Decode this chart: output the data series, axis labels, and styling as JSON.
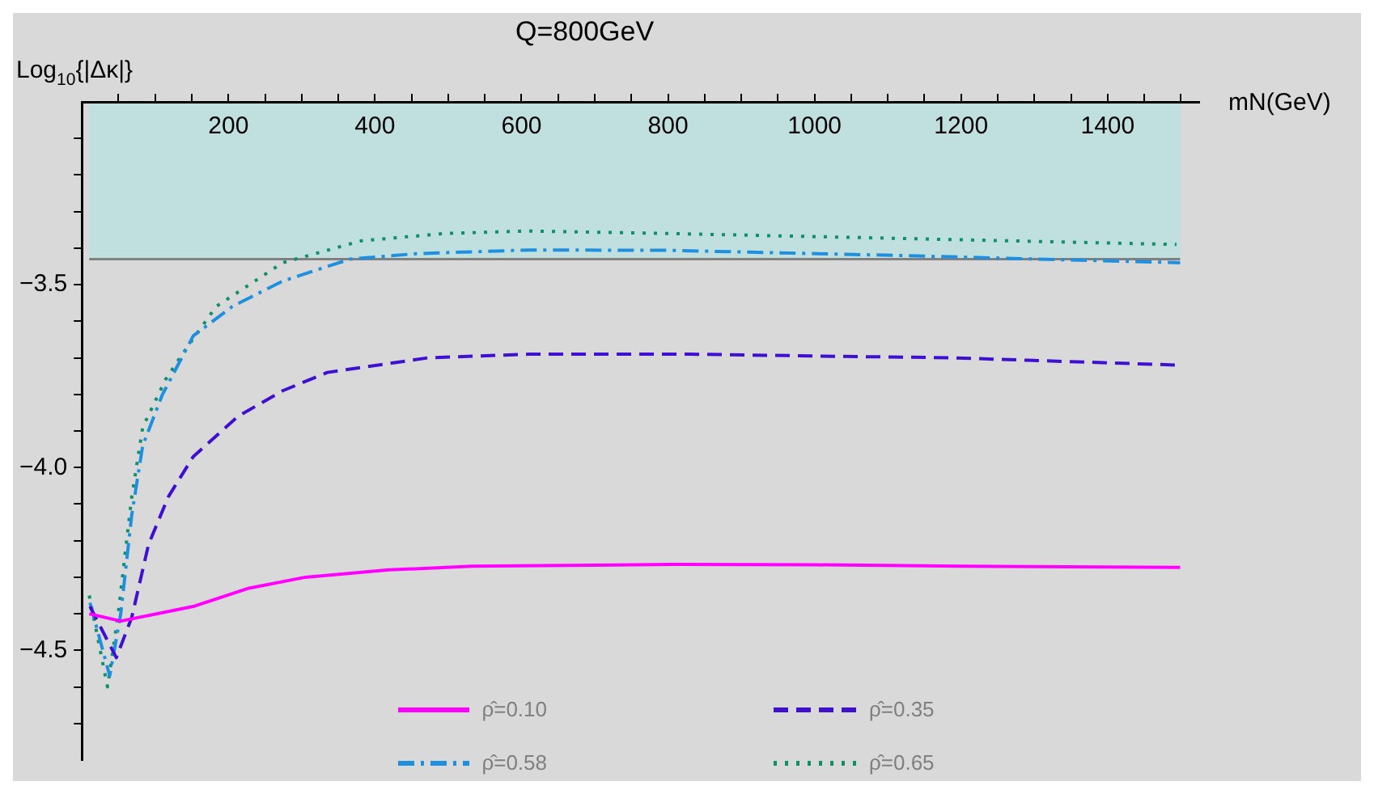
{
  "chart_data": {
    "type": "line",
    "title": "Q=800GeV",
    "xlabel": "mN(GeV)",
    "ylabel": "Log$_{10}${|Δκ|}",
    "xlim": [
      0,
      1525
    ],
    "ylim": [
      -4.8,
      -3.0
    ],
    "xticks": [
      {
        "value": 50,
        "label": null
      },
      {
        "value": 100,
        "label": null
      },
      {
        "value": 150,
        "label": null
      },
      200,
      {
        "value": 250,
        "label": null
      },
      {
        "value": 300,
        "label": null
      },
      {
        "value": 350,
        "label": null
      },
      400,
      {
        "value": 450,
        "label": null
      },
      {
        "value": 500,
        "label": null
      },
      {
        "value": 550,
        "label": null
      },
      600,
      {
        "value": 650,
        "label": null
      },
      {
        "value": 700,
        "label": null
      },
      {
        "value": 750,
        "label": null
      },
      800,
      {
        "value": 850,
        "label": null
      },
      {
        "value": 900,
        "label": null
      },
      {
        "value": 950,
        "label": null
      },
      1000,
      {
        "value": 1050,
        "label": null
      },
      {
        "value": 1100,
        "label": null
      },
      {
        "value": 1150,
        "label": null
      },
      1200,
      {
        "value": 1250,
        "label": null
      },
      {
        "value": 1300,
        "label": null
      },
      {
        "value": 1350,
        "label": null
      },
      1400,
      {
        "value": 1450,
        "label": null
      },
      {
        "value": 1500,
        "label": null
      }
    ],
    "yticks": [
      {
        "value": -4.7,
        "label": null
      },
      {
        "value": -4.6,
        "label": null
      },
      {
        "value": -4.5,
        "label": "−4.5"
      },
      {
        "value": -4.4,
        "label": null
      },
      {
        "value": -4.3,
        "label": null
      },
      {
        "value": -4.2,
        "label": null
      },
      {
        "value": -4.1,
        "label": null
      },
      {
        "value": -4,
        "label": "−4.0"
      },
      {
        "value": -3.9,
        "label": null
      },
      {
        "value": -3.8,
        "label": null
      },
      {
        "value": -3.7,
        "label": null
      },
      {
        "value": -3.6,
        "label": null
      },
      {
        "value": -3.5,
        "label": "−3.5"
      },
      {
        "value": -3.4,
        "label": null
      },
      {
        "value": -3.3,
        "label": null
      },
      {
        "value": -3.2,
        "label": null
      },
      {
        "value": -3.1,
        "label": null
      }
    ],
    "grid": false,
    "legend": "bottom",
    "bands": [
      {
        "axis": "y",
        "from": -3.43,
        "to": -3.0,
        "color": "#c0dfdf"
      }
    ],
    "ref_lines": [
      {
        "axis": "y",
        "value": -3.43,
        "color": "#808080"
      }
    ],
    "series": [
      {
        "name": "ρ̂=0.10",
        "color": "#ff00ff",
        "line_style": "solid",
        "x": [
          10,
          53,
          152,
          228,
          305,
          419,
          533,
          808,
          1000,
          1200,
          1499
        ],
        "values": [
          -4.4,
          -4.42,
          -4.38,
          -4.33,
          -4.3,
          -4.28,
          -4.27,
          -4.265,
          -4.266,
          -4.27,
          -4.273
        ]
      },
      {
        "name": "ρ̂=0.35",
        "color": "#4010d0",
        "line_style": "dashed",
        "x": [
          11,
          47,
          68,
          91,
          118,
          152,
          213,
          274,
          335,
          472,
          610,
          831,
          1000,
          1189,
          1499
        ],
        "values": [
          -4.38,
          -4.52,
          -4.41,
          -4.21,
          -4.08,
          -3.97,
          -3.86,
          -3.79,
          -3.74,
          -3.7,
          -3.69,
          -3.69,
          -3.695,
          -3.7,
          -3.72
        ]
      },
      {
        "name": "ρ̂=0.58",
        "color": "#1f90e0",
        "line_style": "dashdot",
        "x": [
          11,
          38,
          53,
          68,
          83,
          110,
          152,
          205,
          274,
          366,
          457,
          610,
          800,
          1113,
          1499
        ],
        "values": [
          -4.37,
          -4.57,
          -4.4,
          -4.13,
          -3.94,
          -3.8,
          -3.64,
          -3.56,
          -3.49,
          -3.43,
          -3.415,
          -3.405,
          -3.406,
          -3.42,
          -3.44
        ]
      },
      {
        "name": "ρ̂=0.65",
        "color": "#10906a",
        "line_style": "dotted",
        "x": [
          10,
          35,
          49,
          68,
          83,
          114,
          137,
          183,
          274,
          381,
          495,
          610,
          800,
          1037,
          1266,
          1494
        ],
        "values": [
          -4.35,
          -4.6,
          -4.41,
          -4.08,
          -3.89,
          -3.76,
          -3.69,
          -3.56,
          -3.44,
          -3.38,
          -3.36,
          -3.353,
          -3.36,
          -3.37,
          -3.38,
          -3.39
        ]
      }
    ]
  }
}
